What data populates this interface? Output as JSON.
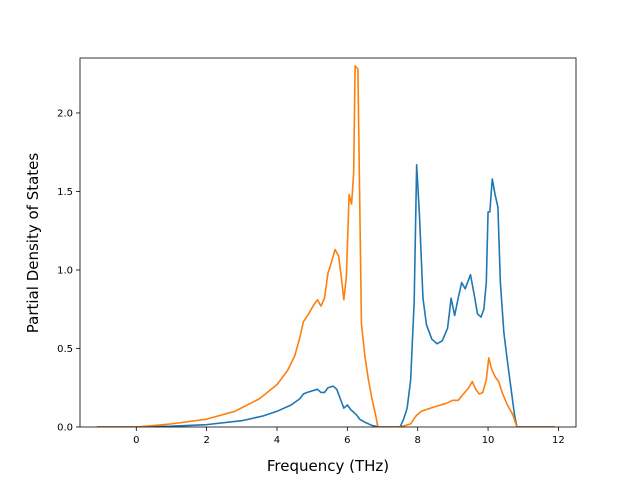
{
  "chart_data": {
    "type": "line",
    "title": "",
    "xlabel": "Frequency (THz)",
    "ylabel": "Partial Density of States",
    "xlim": [
      -1.6,
      12.5
    ],
    "ylim": [
      0,
      2.35
    ],
    "xticks": [
      0,
      2,
      4,
      6,
      8,
      10,
      12
    ],
    "yticks": [
      0.0,
      0.5,
      1.0,
      1.5,
      2.0
    ],
    "xtick_labels": [
      "0",
      "2",
      "4",
      "6",
      "8",
      "10",
      "12"
    ],
    "ytick_labels": [
      "0.0",
      "0.5",
      "1.0",
      "1.5",
      "2.0"
    ],
    "grid": false,
    "legend": "none",
    "series": [
      {
        "color": "#1f77b4",
        "points": [
          [
            -1.12,
            0.0
          ],
          [
            0.0,
            0.0
          ],
          [
            1.0,
            0.005
          ],
          [
            2.0,
            0.015
          ],
          [
            3.0,
            0.04
          ],
          [
            3.6,
            0.07
          ],
          [
            4.0,
            0.1
          ],
          [
            4.4,
            0.14
          ],
          [
            4.65,
            0.18
          ],
          [
            4.75,
            0.21
          ],
          [
            4.85,
            0.22
          ],
          [
            5.0,
            0.23
          ],
          [
            5.15,
            0.24
          ],
          [
            5.25,
            0.22
          ],
          [
            5.35,
            0.22
          ],
          [
            5.45,
            0.25
          ],
          [
            5.6,
            0.26
          ],
          [
            5.7,
            0.24
          ],
          [
            5.8,
            0.18
          ],
          [
            5.9,
            0.12
          ],
          [
            6.0,
            0.14
          ],
          [
            6.1,
            0.11
          ],
          [
            6.25,
            0.08
          ],
          [
            6.35,
            0.05
          ],
          [
            6.5,
            0.03
          ],
          [
            6.7,
            0.01
          ],
          [
            6.9,
            0.0
          ],
          [
            7.5,
            0.0
          ],
          [
            7.6,
            0.05
          ],
          [
            7.7,
            0.12
          ],
          [
            7.8,
            0.3
          ],
          [
            7.9,
            0.8
          ],
          [
            7.97,
            1.67
          ],
          [
            8.05,
            1.35
          ],
          [
            8.15,
            0.82
          ],
          [
            8.25,
            0.65
          ],
          [
            8.4,
            0.56
          ],
          [
            8.55,
            0.53
          ],
          [
            8.7,
            0.55
          ],
          [
            8.85,
            0.63
          ],
          [
            8.95,
            0.82
          ],
          [
            9.05,
            0.71
          ],
          [
            9.15,
            0.82
          ],
          [
            9.25,
            0.92
          ],
          [
            9.35,
            0.88
          ],
          [
            9.5,
            0.97
          ],
          [
            9.6,
            0.85
          ],
          [
            9.7,
            0.72
          ],
          [
            9.8,
            0.7
          ],
          [
            9.88,
            0.75
          ],
          [
            9.95,
            0.92
          ],
          [
            10.0,
            1.37
          ],
          [
            10.05,
            1.37
          ],
          [
            10.12,
            1.58
          ],
          [
            10.2,
            1.48
          ],
          [
            10.28,
            1.4
          ],
          [
            10.35,
            0.92
          ],
          [
            10.45,
            0.6
          ],
          [
            10.55,
            0.42
          ],
          [
            10.65,
            0.25
          ],
          [
            10.75,
            0.08
          ],
          [
            10.82,
            0.0
          ],
          [
            11.9,
            0.0
          ]
        ]
      },
      {
        "color": "#ff7f0e",
        "points": [
          [
            -1.12,
            0.0
          ],
          [
            0.0,
            0.0
          ],
          [
            1.0,
            0.02
          ],
          [
            2.0,
            0.05
          ],
          [
            2.8,
            0.1
          ],
          [
            3.5,
            0.18
          ],
          [
            4.0,
            0.27
          ],
          [
            4.3,
            0.36
          ],
          [
            4.5,
            0.45
          ],
          [
            4.65,
            0.57
          ],
          [
            4.75,
            0.67
          ],
          [
            4.9,
            0.72
          ],
          [
            5.05,
            0.78
          ],
          [
            5.15,
            0.81
          ],
          [
            5.25,
            0.77
          ],
          [
            5.35,
            0.82
          ],
          [
            5.45,
            0.98
          ],
          [
            5.55,
            1.05
          ],
          [
            5.65,
            1.13
          ],
          [
            5.75,
            1.09
          ],
          [
            5.82,
            0.97
          ],
          [
            5.9,
            0.81
          ],
          [
            5.97,
            0.95
          ],
          [
            6.05,
            1.48
          ],
          [
            6.12,
            1.42
          ],
          [
            6.18,
            1.62
          ],
          [
            6.22,
            2.3
          ],
          [
            6.3,
            2.28
          ],
          [
            6.4,
            0.66
          ],
          [
            6.5,
            0.45
          ],
          [
            6.6,
            0.3
          ],
          [
            6.7,
            0.18
          ],
          [
            6.8,
            0.08
          ],
          [
            6.87,
            0.0
          ],
          [
            7.5,
            0.0
          ],
          [
            7.8,
            0.02
          ],
          [
            7.95,
            0.07
          ],
          [
            8.1,
            0.1
          ],
          [
            8.5,
            0.13
          ],
          [
            8.8,
            0.15
          ],
          [
            9.0,
            0.17
          ],
          [
            9.15,
            0.17
          ],
          [
            9.3,
            0.21
          ],
          [
            9.45,
            0.25
          ],
          [
            9.55,
            0.29
          ],
          [
            9.65,
            0.24
          ],
          [
            9.75,
            0.21
          ],
          [
            9.85,
            0.22
          ],
          [
            9.95,
            0.3
          ],
          [
            10.02,
            0.44
          ],
          [
            10.1,
            0.37
          ],
          [
            10.2,
            0.32
          ],
          [
            10.3,
            0.29
          ],
          [
            10.4,
            0.22
          ],
          [
            10.55,
            0.14
          ],
          [
            10.7,
            0.08
          ],
          [
            10.82,
            0.0
          ],
          [
            11.9,
            0.0
          ]
        ]
      }
    ]
  }
}
